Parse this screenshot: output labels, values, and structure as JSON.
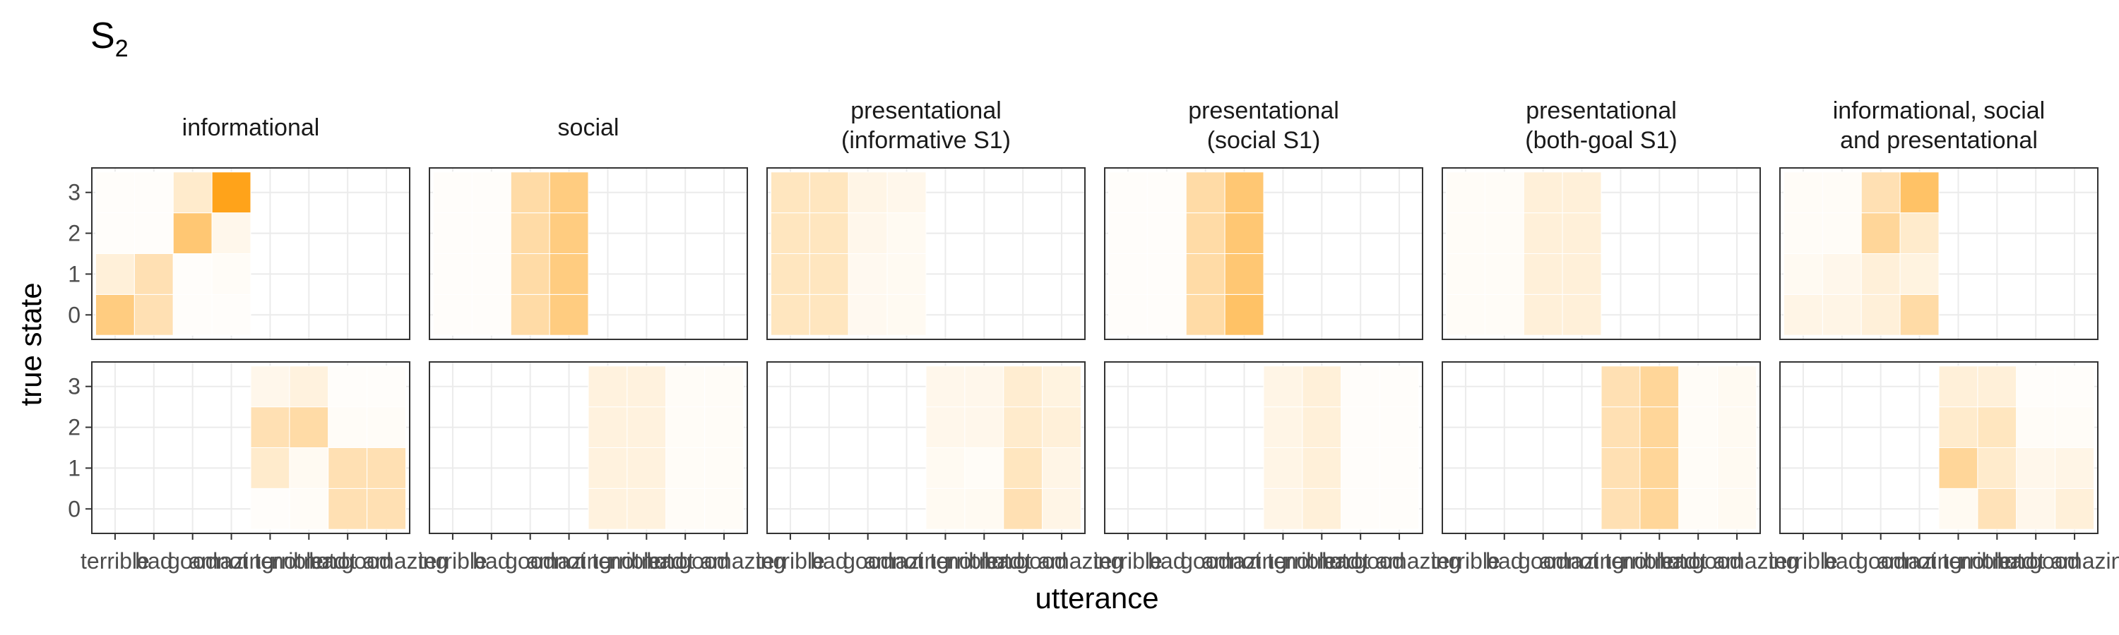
{
  "chart_data": {
    "type": "heatmap",
    "title": "S",
    "title_subscript": "2",
    "xlabel": "utterance",
    "ylabel": "true state",
    "x_tick_labels": [
      "terrible",
      "bad",
      "good",
      "amazing",
      "not terrible",
      "not bad",
      "not good",
      "not amazing"
    ],
    "y_tick_labels": [
      "0",
      "1",
      "2",
      "3"
    ],
    "color_scale": {
      "low": "#ffffff",
      "high": "#ff9900"
    },
    "grid": true,
    "rows": [
      {
        "name": "positive",
        "utterances": [
          "terrible",
          "bad",
          "good",
          "amazing"
        ]
      },
      {
        "name": "negated",
        "utterances": [
          "not terrible",
          "not bad",
          "not good",
          "not amazing"
        ]
      }
    ],
    "facets": [
      {
        "title_lines": [
          "informational"
        ],
        "positive": [
          [
            0.5,
            0.3,
            0.02,
            0.02
          ],
          [
            0.15,
            0.3,
            0.02,
            0.03
          ],
          [
            0.02,
            0.02,
            0.55,
            0.08
          ],
          [
            0.02,
            0.02,
            0.2,
            0.9
          ]
        ],
        "negated": [
          [
            0.02,
            0.03,
            0.3,
            0.3
          ],
          [
            0.2,
            0.05,
            0.3,
            0.3
          ],
          [
            0.3,
            0.35,
            0.03,
            0.03
          ],
          [
            0.08,
            0.13,
            0.02,
            0.02
          ]
        ]
      },
      {
        "title_lines": [
          "social"
        ],
        "positive": [
          [
            0.02,
            0.02,
            0.35,
            0.5
          ],
          [
            0.02,
            0.02,
            0.35,
            0.5
          ],
          [
            0.02,
            0.02,
            0.35,
            0.5
          ],
          [
            0.02,
            0.02,
            0.35,
            0.5
          ]
        ],
        "negated": [
          [
            0.13,
            0.13,
            0.03,
            0.03
          ],
          [
            0.13,
            0.13,
            0.03,
            0.03
          ],
          [
            0.13,
            0.13,
            0.03,
            0.03
          ],
          [
            0.13,
            0.13,
            0.03,
            0.03
          ]
        ]
      },
      {
        "title_lines": [
          "presentational",
          "(informative S1)"
        ],
        "positive": [
          [
            0.25,
            0.25,
            0.06,
            0.05
          ],
          [
            0.25,
            0.25,
            0.06,
            0.05
          ],
          [
            0.25,
            0.25,
            0.08,
            0.05
          ],
          [
            0.25,
            0.25,
            0.1,
            0.08
          ]
        ],
        "negated": [
          [
            0.05,
            0.05,
            0.3,
            0.1
          ],
          [
            0.05,
            0.03,
            0.25,
            0.1
          ],
          [
            0.08,
            0.08,
            0.2,
            0.15
          ],
          [
            0.08,
            0.08,
            0.18,
            0.12
          ]
        ]
      },
      {
        "title_lines": [
          "presentational",
          "(social S1)"
        ],
        "positive": [
          [
            0.02,
            0.02,
            0.35,
            0.6
          ],
          [
            0.02,
            0.02,
            0.35,
            0.55
          ],
          [
            0.02,
            0.02,
            0.35,
            0.55
          ],
          [
            0.02,
            0.02,
            0.35,
            0.55
          ]
        ],
        "negated": [
          [
            0.1,
            0.15,
            0.02,
            0.02
          ],
          [
            0.1,
            0.15,
            0.02,
            0.02
          ],
          [
            0.1,
            0.15,
            0.02,
            0.02
          ],
          [
            0.1,
            0.15,
            0.02,
            0.02
          ]
        ]
      },
      {
        "title_lines": [
          "presentational",
          "(both-goal S1)"
        ],
        "positive": [
          [
            0.03,
            0.03,
            0.15,
            0.15
          ],
          [
            0.03,
            0.03,
            0.15,
            0.15
          ],
          [
            0.03,
            0.03,
            0.15,
            0.15
          ],
          [
            0.03,
            0.03,
            0.15,
            0.15
          ]
        ],
        "negated": [
          [
            0.3,
            0.4,
            0.03,
            0.05
          ],
          [
            0.3,
            0.4,
            0.03,
            0.05
          ],
          [
            0.3,
            0.4,
            0.03,
            0.05
          ],
          [
            0.3,
            0.4,
            0.03,
            0.05
          ]
        ]
      },
      {
        "title_lines": [
          "informational, social",
          "and presentational"
        ],
        "positive": [
          [
            0.1,
            0.1,
            0.15,
            0.35
          ],
          [
            0.05,
            0.08,
            0.15,
            0.12
          ],
          [
            0.03,
            0.03,
            0.4,
            0.2
          ],
          [
            0.03,
            0.03,
            0.3,
            0.6
          ]
        ],
        "negated": [
          [
            0.05,
            0.28,
            0.08,
            0.15
          ],
          [
            0.4,
            0.2,
            0.08,
            0.1
          ],
          [
            0.2,
            0.25,
            0.03,
            0.03
          ],
          [
            0.15,
            0.15,
            0.02,
            0.02
          ]
        ]
      }
    ]
  }
}
